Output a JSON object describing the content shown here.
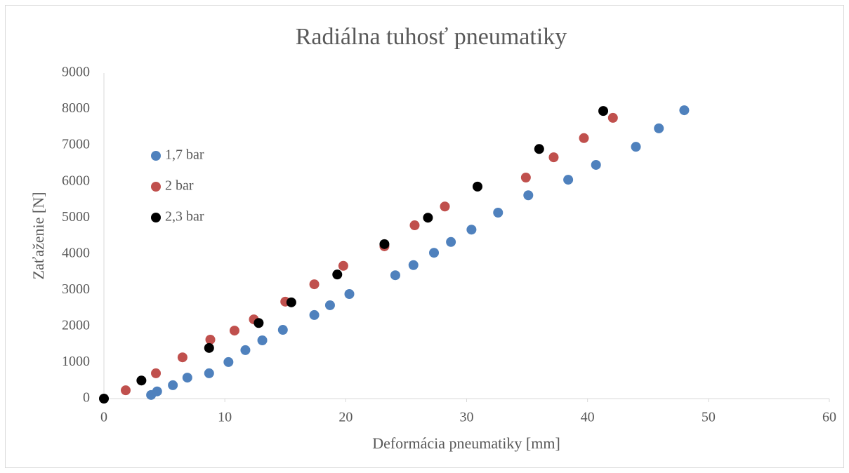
{
  "chart_data": {
    "type": "scatter",
    "title": "Radiálna tuhosť pneumatiky",
    "x_label": "Deformácia pneumatiky [mm]",
    "y_label": "Zaťaženie [N]",
    "xlim": [
      0,
      60
    ],
    "xticks": [
      0,
      10,
      20,
      30,
      40,
      50,
      60
    ],
    "ylim": [
      0,
      9000
    ],
    "yticks": [
      0,
      1000,
      2000,
      3000,
      4000,
      5000,
      6000,
      7000,
      8000,
      9000
    ],
    "grid": false,
    "legend": "left",
    "series": [
      {
        "name": "1,7 bar",
        "color": "#4f81bd",
        "x": [
          3.9,
          4.4,
          5.7,
          6.9,
          8.7,
          10.3,
          11.7,
          13.1,
          14.8,
          17.4,
          18.7,
          20.3,
          24.1,
          25.6,
          27.3,
          28.7,
          30.4,
          32.6,
          35.1,
          38.4,
          40.7,
          44.0,
          45.9,
          48.0
        ],
        "values": [
          100,
          200,
          370,
          580,
          700,
          1010,
          1340,
          1610,
          1900,
          2310,
          2580,
          2890,
          3410,
          3690,
          4030,
          4330,
          4670,
          5140,
          5620,
          6050,
          6460,
          6960,
          7470,
          7970
        ]
      },
      {
        "name": "2 bar",
        "color": "#c0504d",
        "x": [
          1.8,
          4.3,
          6.5,
          8.8,
          10.8,
          12.4,
          15.0,
          17.4,
          19.8,
          23.2,
          25.7,
          28.2,
          34.9,
          37.2,
          39.7,
          42.1
        ],
        "values": [
          230,
          700,
          1140,
          1630,
          1880,
          2190,
          2680,
          3160,
          3670,
          4210,
          4790,
          5310,
          6110,
          6670,
          7200,
          7760
        ]
      },
      {
        "name": "2,3 bar",
        "color": "#000000",
        "x": [
          0,
          3.1,
          8.7,
          12.8,
          15.5,
          19.3,
          23.2,
          26.8,
          30.9,
          36.0,
          41.3
        ],
        "values": [
          0,
          500,
          1400,
          2090,
          2660,
          3430,
          4270,
          5000,
          5860,
          6900,
          7950
        ]
      }
    ]
  }
}
